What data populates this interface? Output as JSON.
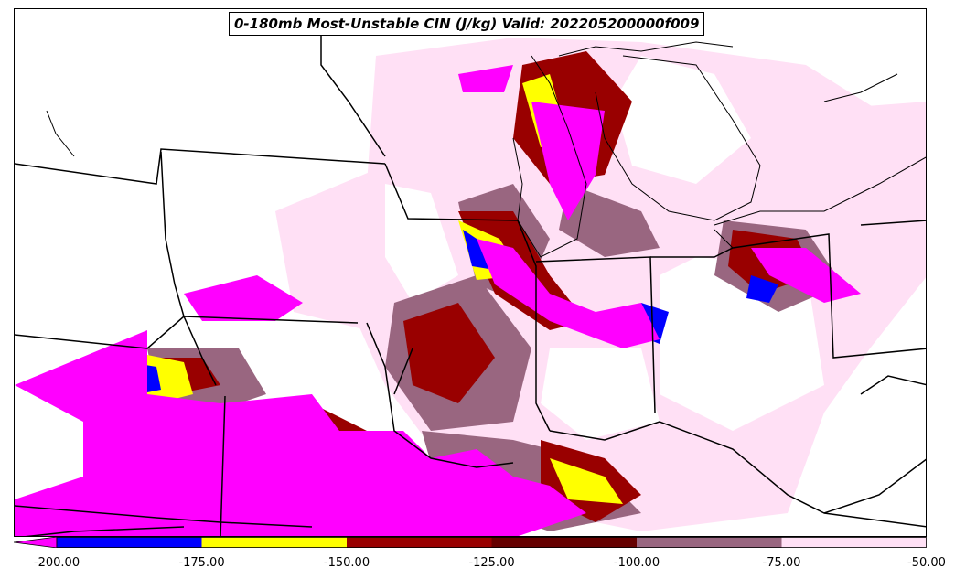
{
  "title": "0-180mb Most-Unstable CIN (J/kg) Valid: 202205200000f009",
  "colorbar": {
    "bins": [
      {
        "range": [
          -200,
          -175
        ],
        "color": "#0000ff"
      },
      {
        "range": [
          -175,
          -150
        ],
        "color": "#ffff00"
      },
      {
        "range": [
          -150,
          -125
        ],
        "color": "#990000"
      },
      {
        "range": [
          -125,
          -100
        ],
        "color": "#660000"
      },
      {
        "range": [
          -100,
          -75
        ],
        "color": "#996680"
      },
      {
        "range": [
          -75,
          -50
        ],
        "color": "#ffe0f5"
      }
    ],
    "under_color": "#ff00ff",
    "tick_labels": [
      "-200.00",
      "-175.00",
      "-150.00",
      "-125.00",
      "-100.00",
      "-75.00",
      "-50.00"
    ]
  },
  "colors": {
    "strong_cin": "#ff00ff",
    "blue": "#0000ff",
    "yellow": "#ffff00",
    "dark_red": "#990000",
    "maroon": "#660000",
    "mauve": "#996680",
    "light_pink": "#ffe0f5",
    "boundaries": "#000000"
  }
}
